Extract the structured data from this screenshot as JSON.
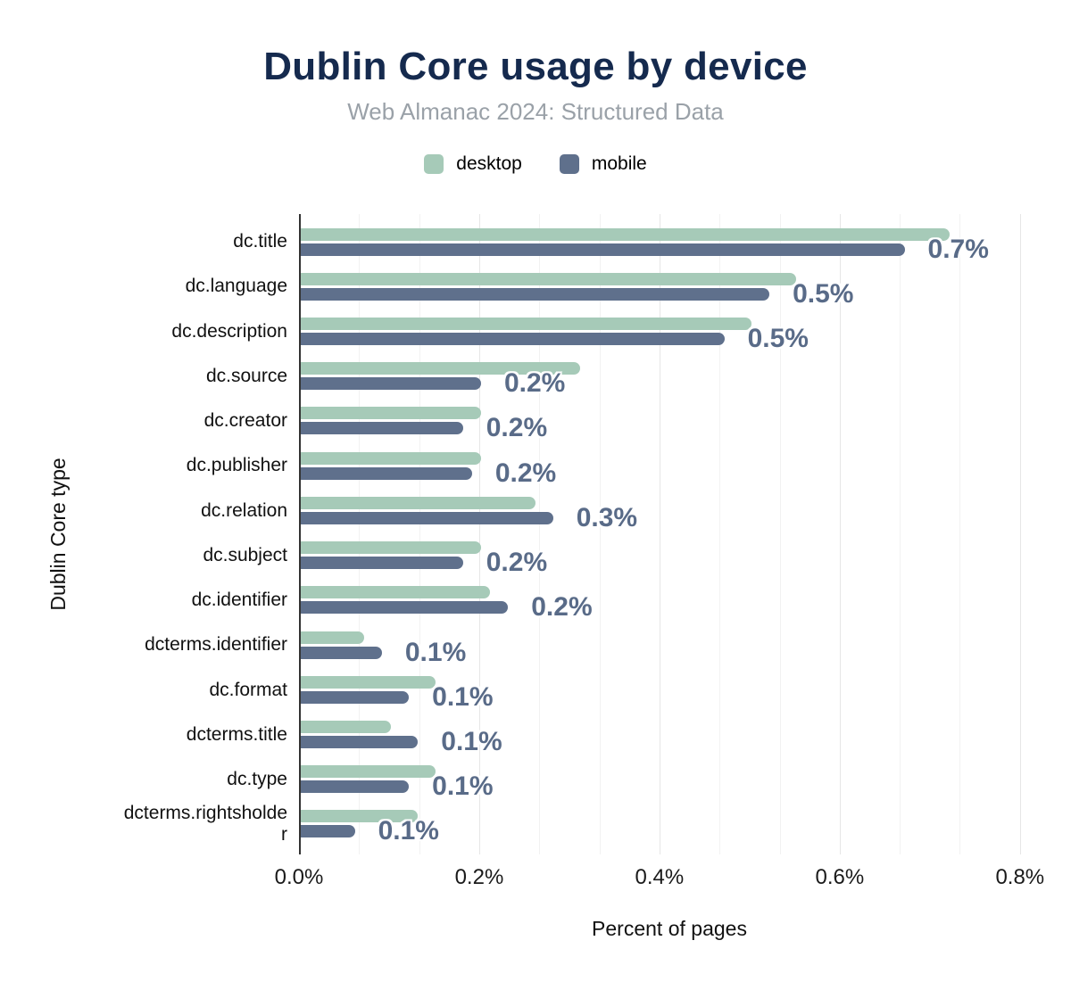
{
  "header": {
    "title": "Dublin Core usage by device",
    "subtitle": "Web Almanac 2024: Structured Data"
  },
  "legend": {
    "items": [
      {
        "label": "desktop",
        "color": "#a6cab8"
      },
      {
        "label": "mobile",
        "color": "#5f708c"
      }
    ]
  },
  "colors": {
    "title": "#152a4e",
    "subtitle": "#9aa1a8",
    "value_label": "#596b88",
    "axis_line": "#333333",
    "grid_minor": "#f2f2f2",
    "grid_major": "#e6e6e6",
    "background": "#ffffff"
  },
  "chart_data": {
    "type": "bar",
    "orientation": "horizontal",
    "title": "Dublin Core usage by device",
    "subtitle": "Web Almanac 2024: Structured Data",
    "xlabel": "Percent of pages",
    "ylabel": "Dublin Core type",
    "xlim": [
      0,
      0.82
    ],
    "x_tick_values": [
      0,
      0.2,
      0.4,
      0.6,
      0.8
    ],
    "x_tick_labels": [
      "0.0%",
      "0.2%",
      "0.4%",
      "0.6%",
      "0.8%"
    ],
    "grid": true,
    "legend_position": "top",
    "categories": [
      "dc.title",
      "dc.language",
      "dc.description",
      "dc.source",
      "dc.creator",
      "dc.publisher",
      "dc.relation",
      "dc.subject",
      "dc.identifier",
      "dcterms.identifier",
      "dc.format",
      "dcterms.title",
      "dc.type",
      "dcterms.rightsholder"
    ],
    "series": [
      {
        "name": "desktop",
        "color": "#a6cab8",
        "values": [
          0.72,
          0.55,
          0.5,
          0.31,
          0.2,
          0.2,
          0.26,
          0.2,
          0.21,
          0.07,
          0.15,
          0.1,
          0.15,
          0.13
        ]
      },
      {
        "name": "mobile",
        "color": "#5f708c",
        "values": [
          0.67,
          0.52,
          0.47,
          0.2,
          0.18,
          0.19,
          0.28,
          0.18,
          0.23,
          0.09,
          0.12,
          0.13,
          0.12,
          0.06
        ]
      }
    ],
    "bar_labels": [
      "0.7%",
      "0.5%",
      "0.5%",
      "0.2%",
      "0.2%",
      "0.2%",
      "0.3%",
      "0.2%",
      "0.2%",
      "0.1%",
      "0.1%",
      "0.1%",
      "0.1%",
      "0.1%"
    ]
  }
}
